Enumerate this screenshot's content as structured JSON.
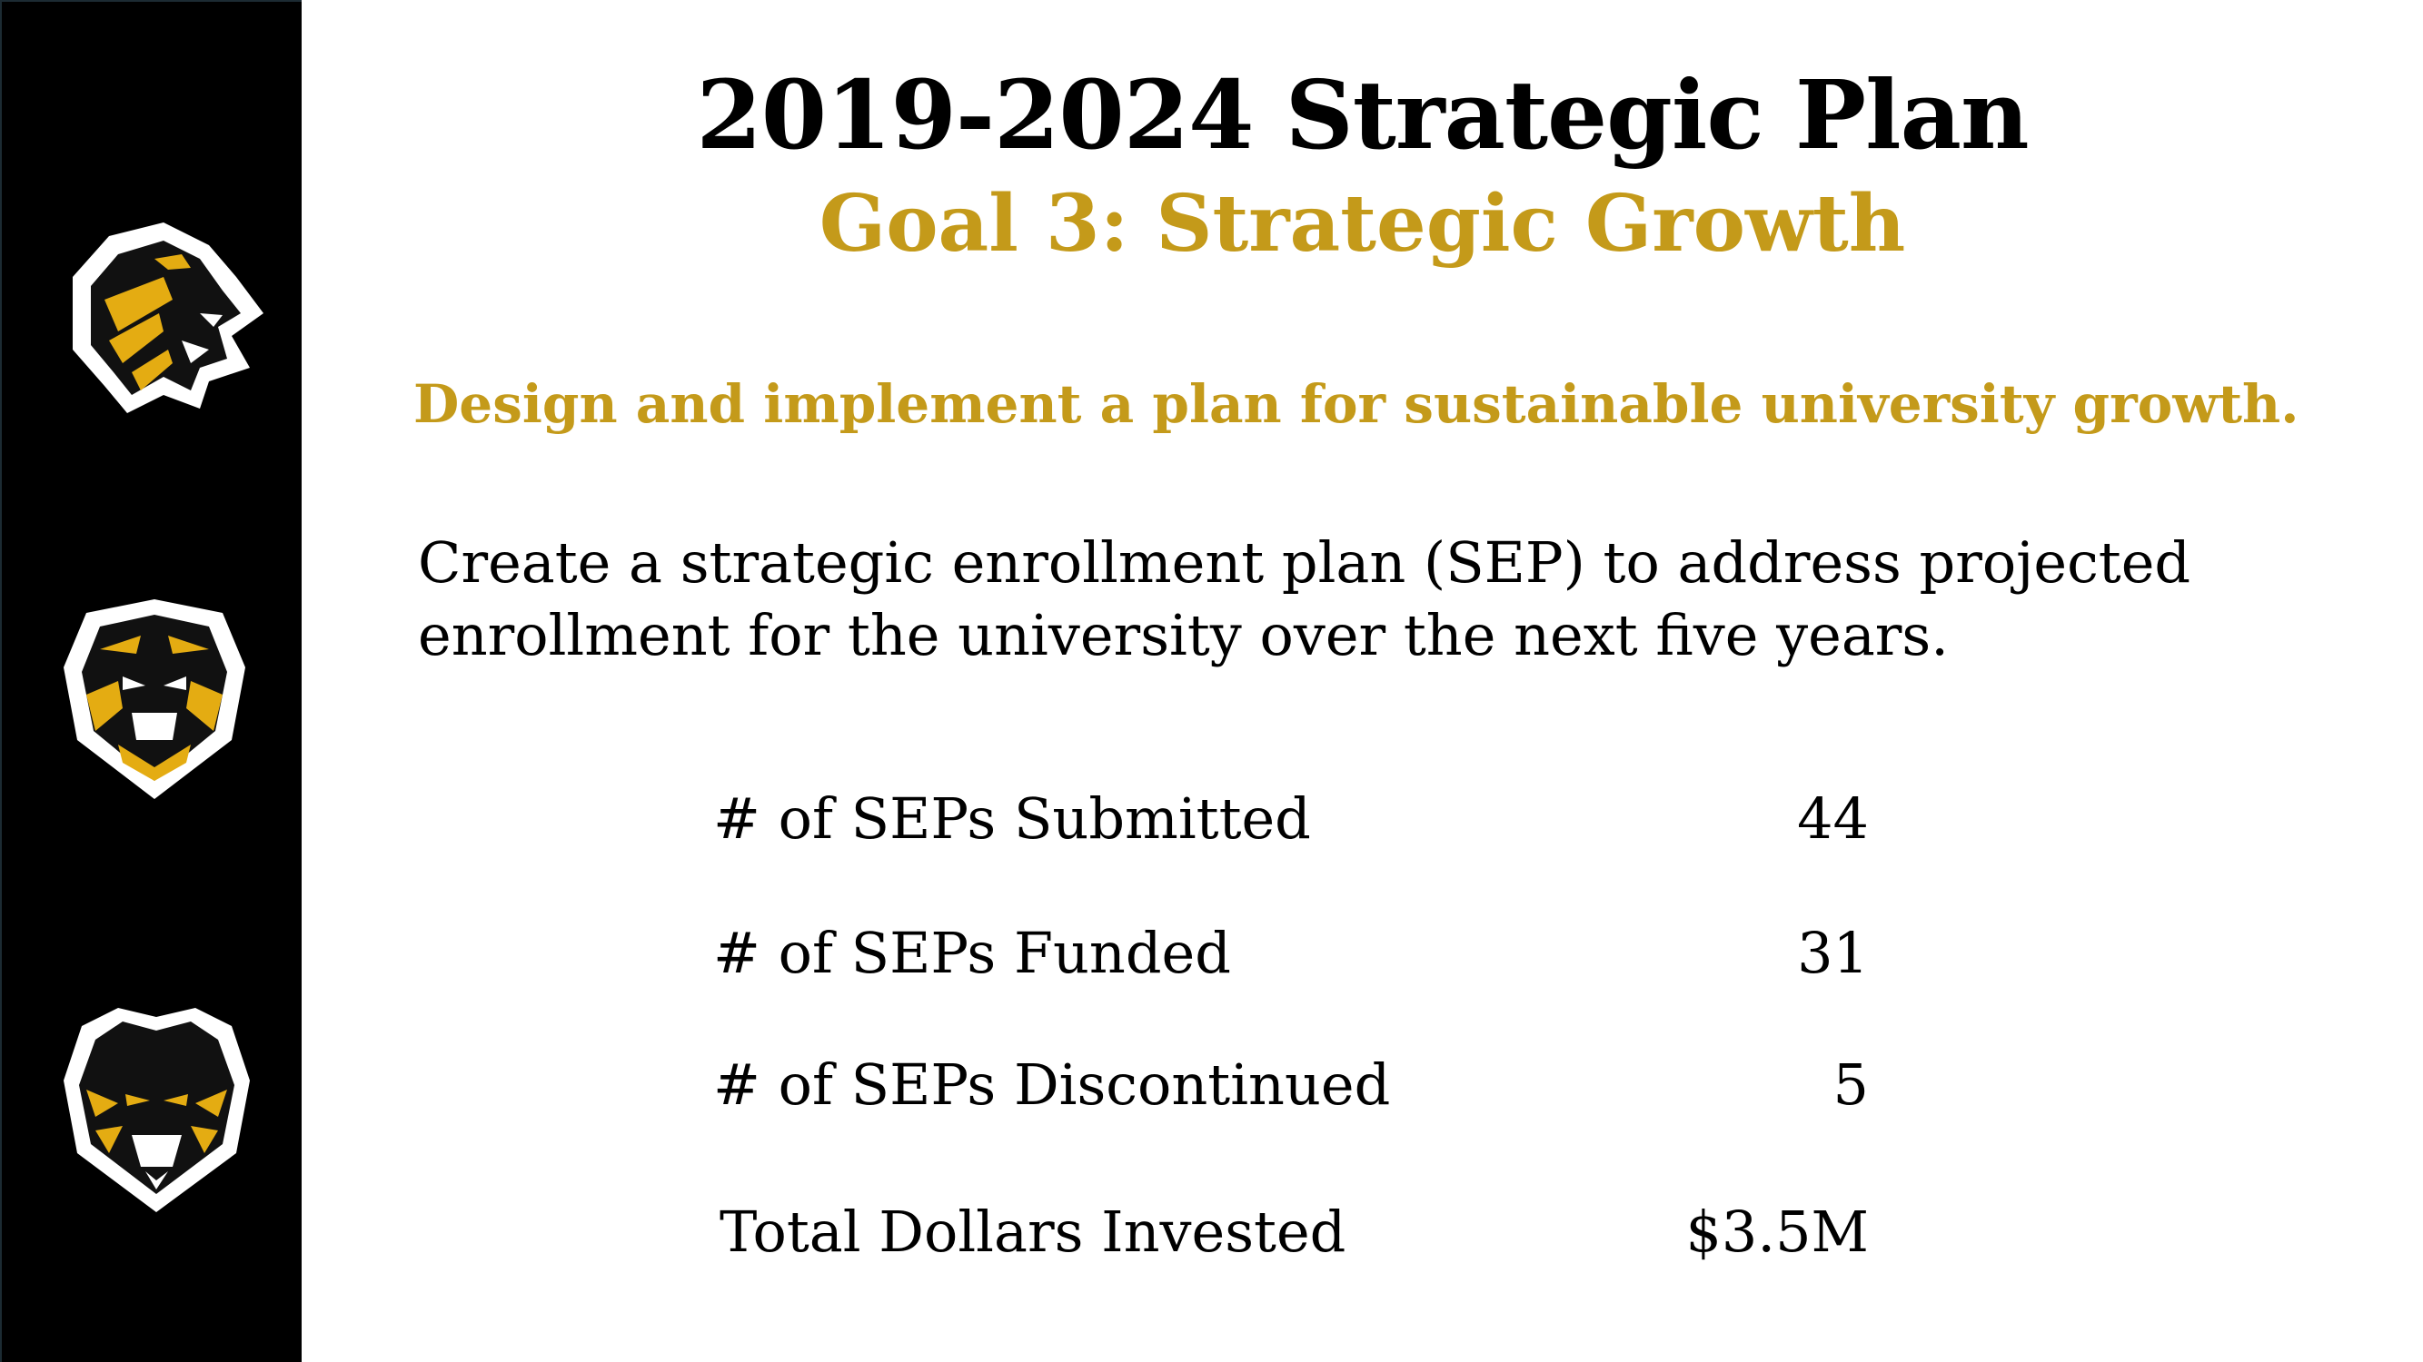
{
  "slide": {
    "title": "2019-2024 Strategic Plan",
    "goal": "Goal 3:  Strategic Growth",
    "subtitle": "Design and implement a plan for sustainable university growth.",
    "description_lines": [
      "Create a strategic enrollment plan (SEP) to address projected",
      "enrollment for the university over the next five years."
    ]
  },
  "metrics": [
    {
      "label": "# of SEPs Submitted",
      "value": "44"
    },
    {
      "label": "# of SEPs Funded",
      "value": "31"
    },
    {
      "label": "# of SEPs Discontinued",
      "value": "5"
    },
    {
      "label": "Total Dollars Invested",
      "value": "$3.5M"
    }
  ],
  "sidebar": {
    "logos": [
      "tiger-head-side-logo",
      "tiger-head-front-logo",
      "tiger-head-shield-logo"
    ]
  },
  "colors": {
    "accent_gold": "#c49a1a",
    "sidebar_bg": "#000000",
    "text": "#000000"
  }
}
